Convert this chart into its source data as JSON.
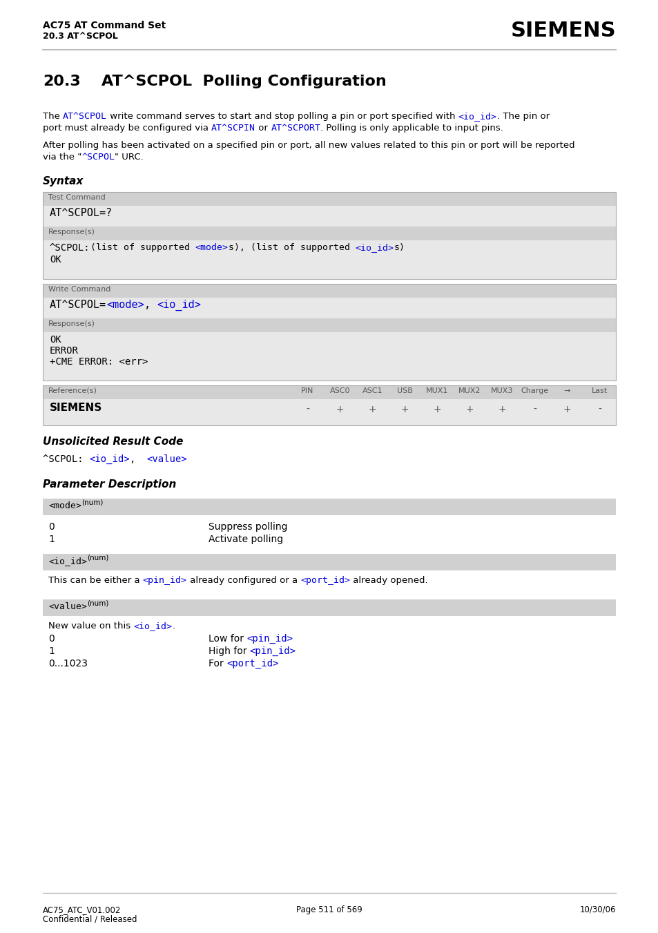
{
  "page_bg": "#ffffff",
  "header_line_color": "#bbbbbb",
  "header_title_left": "AC75 AT Command Set",
  "header_subtitle_left": "20.3 AT^SCPOL",
  "header_title_right": "SIEMENS",
  "syntax_title": "Syntax",
  "box_bg_dark": "#d0d0d0",
  "box_bg_light": "#e8e8e8",
  "box_border": "#aaaaaa",
  "test_cmd_label": "Test Command",
  "test_cmd_text": "AT^SCPOL=?",
  "test_resp_label": "Response(s)",
  "test_resp_ok": "OK",
  "write_cmd_label": "Write Command",
  "write_resp_label": "Response(s)",
  "ref_label": "Reference(s)",
  "ref_value": "SIEMENS",
  "table_headers": [
    "PIN",
    "ASC0",
    "ASC1",
    "USB",
    "MUX1",
    "MUX2",
    "MUX3",
    "Charge",
    "→",
    "Last"
  ],
  "table_values": [
    "-",
    "+",
    "+",
    "+",
    "+",
    "+",
    "+",
    "-",
    "+",
    "-"
  ],
  "urc_title": "Unsolicited Result Code",
  "param_title": "Parameter Description",
  "footer_left1": "AC75_ATC_V01.002",
  "footer_left2": "Confidential / Released",
  "footer_center": "Page 511 of 569",
  "footer_right": "10/30/06",
  "blue": "#0000dd",
  "dark_gray": "#555555",
  "black": "#000000"
}
